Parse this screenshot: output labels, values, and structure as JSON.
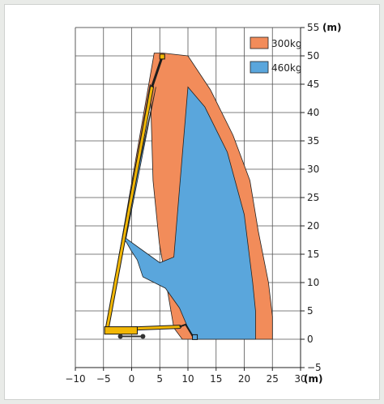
{
  "chart_data": {
    "type": "area",
    "title": "",
    "xlabel": "(m)",
    "ylabel": "(m)",
    "xlim": [
      -10,
      30
    ],
    "ylim": [
      -5,
      55
    ],
    "x_ticks": [
      -10,
      -5,
      0,
      5,
      10,
      15,
      20,
      25,
      30
    ],
    "y_ticks": [
      -5,
      0,
      5,
      10,
      15,
      20,
      25,
      30,
      35,
      40,
      45,
      50,
      55
    ],
    "grid": true,
    "legend_position": "top-right",
    "series": [
      {
        "name": "300kg",
        "color": "#f28c5a",
        "x": [
          -4.5,
          -4.5,
          4,
          5.5,
          10,
          14,
          18,
          21,
          22.5,
          24.3,
          25,
          25,
          20,
          15,
          11,
          9,
          7.5,
          4.9,
          4.3,
          3.8,
          3.3
        ],
        "y": [
          1.5,
          1.8,
          50.5,
          50.5,
          50,
          44,
          36,
          28,
          19,
          10,
          4,
          0,
          0,
          0,
          0,
          0,
          2,
          17,
          23,
          28,
          45
        ]
      },
      {
        "name": "460kg",
        "color": "#5aa6dc",
        "x": [
          -1,
          1.5,
          5,
          7.5,
          10,
          13,
          17,
          20,
          21.5,
          22,
          22,
          11,
          10,
          8.5,
          6,
          2,
          1.5,
          1,
          0,
          -1,
          -1.5,
          4.3
        ],
        "y": [
          17.8,
          16,
          13.5,
          14.5,
          44.5,
          41,
          33,
          22,
          10,
          5,
          0,
          0,
          2,
          5.5,
          9,
          11,
          12.5,
          14,
          15.5,
          17.2,
          17.5,
          44.5
        ]
      }
    ]
  }
}
